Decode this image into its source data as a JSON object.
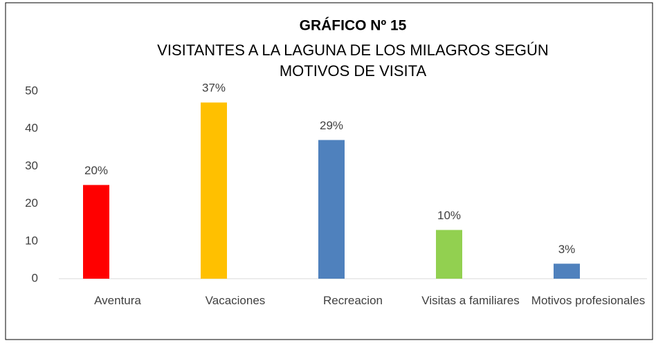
{
  "chart_data": {
    "type": "bar",
    "title": "GRÁFICO Nº 15",
    "subtitle": [
      "VISITANTES A LA LAGUNA DE LOS MILAGROS SEGÚN",
      "MOTIVOS DE VISITA"
    ],
    "categories": [
      "Aventura",
      "Vacaciones",
      "Recreacion",
      "Visitas a familiares",
      "Motivos profesionales"
    ],
    "values": [
      25,
      47,
      37,
      13,
      4
    ],
    "value_labels": [
      "20%",
      "37%",
      "29%",
      "10%",
      "3%"
    ],
    "colors": [
      "#ff0000",
      "#ffc000",
      "#4f81bd",
      "#92d050",
      "#4f81bd"
    ],
    "ylim": [
      0,
      50
    ],
    "yticks": [
      0,
      10,
      20,
      30,
      40,
      50
    ],
    "grid": false
  }
}
